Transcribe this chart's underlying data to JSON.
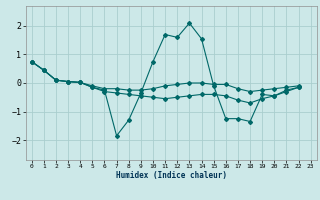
{
  "xlabel": "Humidex (Indice chaleur)",
  "bg_color": "#cce8e8",
  "line_color": "#006868",
  "grid_color": "#aacece",
  "xlim": [
    -0.5,
    23.5
  ],
  "ylim": [
    -2.7,
    2.7
  ],
  "xticks": [
    0,
    1,
    2,
    3,
    4,
    5,
    6,
    7,
    8,
    9,
    10,
    11,
    12,
    13,
    14,
    15,
    16,
    17,
    18,
    19,
    20,
    21,
    22,
    23
  ],
  "yticks": [
    -2,
    -1,
    0,
    1,
    2
  ],
  "series": [
    [
      0.75,
      0.45,
      0.1,
      0.05,
      0.02,
      -0.15,
      -0.25,
      -1.85,
      -1.3,
      -0.35,
      0.75,
      1.7,
      1.6,
      2.1,
      1.55,
      -0.1,
      -1.25,
      -1.25,
      -1.35,
      -0.4,
      -0.45,
      -0.25,
      -0.15
    ],
    [
      0.75,
      0.45,
      0.1,
      0.05,
      0.02,
      -0.1,
      -0.2,
      -0.2,
      -0.25,
      -0.25,
      -0.2,
      -0.1,
      -0.05,
      0.0,
      0.0,
      -0.05,
      -0.05,
      -0.2,
      -0.3,
      -0.25,
      -0.2,
      -0.15,
      -0.1
    ],
    [
      0.75,
      0.45,
      0.1,
      0.05,
      0.02,
      -0.15,
      -0.3,
      -0.35,
      -0.4,
      -0.45,
      -0.5,
      -0.55,
      -0.5,
      -0.45,
      -0.4,
      -0.4,
      -0.45,
      -0.6,
      -0.7,
      -0.55,
      -0.45,
      -0.3,
      -0.15
    ]
  ],
  "x_series": [
    0,
    1,
    2,
    3,
    4,
    5,
    6,
    7,
    8,
    9,
    10,
    11,
    12,
    13,
    14,
    15,
    16,
    17,
    18,
    19,
    20,
    21,
    22
  ]
}
